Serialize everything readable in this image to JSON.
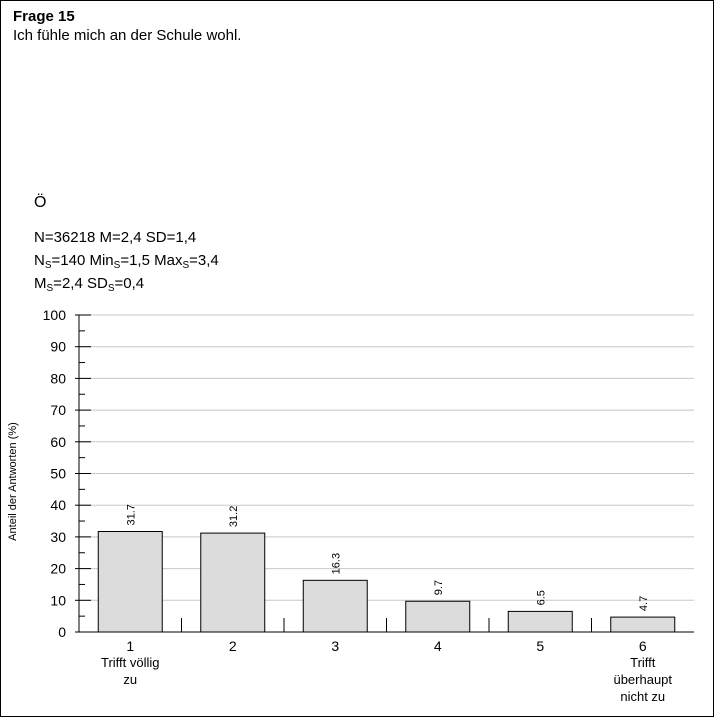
{
  "question": {
    "number": "Frage 15",
    "text": "Ich fühle mich an der Schule wohl."
  },
  "group_label": "Ö",
  "stats": {
    "N": "36218",
    "M": "2,4",
    "SD": "1,4",
    "NS": "140",
    "MinS": "1,5",
    "MaxS": "3,4",
    "MS": "2,4",
    "SDS": "0,4"
  },
  "colors": {
    "bar_fill": "#dcdcdc",
    "bar_stroke": "#000000",
    "grid": "#c8c8c8"
  },
  "chart_data": {
    "type": "bar",
    "ylabel": "Anteil der Antworten (%)",
    "ylim": [
      0,
      100
    ],
    "yticks": [
      0,
      10,
      20,
      30,
      40,
      50,
      60,
      70,
      80,
      90,
      100
    ],
    "grid": true,
    "categories": [
      {
        "number": "1",
        "label": [
          "Trifft völlig",
          "zu"
        ]
      },
      {
        "number": "2",
        "label": []
      },
      {
        "number": "3",
        "label": []
      },
      {
        "number": "4",
        "label": []
      },
      {
        "number": "5",
        "label": []
      },
      {
        "number": "6",
        "label": [
          "Trifft",
          "überhaupt",
          "nicht zu"
        ]
      }
    ],
    "values": [
      31.7,
      31.2,
      16.3,
      9.7,
      6.5,
      4.7
    ],
    "value_labels": [
      "31.7",
      "31.2",
      "16.3",
      "9.7",
      "6.5",
      "4.7"
    ]
  }
}
